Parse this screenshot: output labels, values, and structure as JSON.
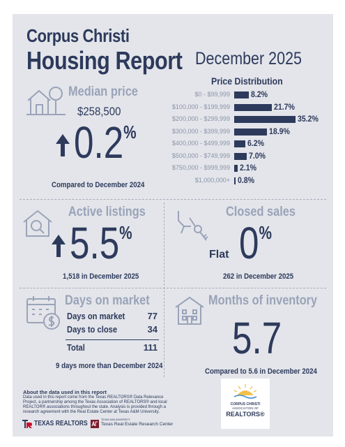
{
  "header": {
    "city": "Corpus Christi",
    "title": "Housing Report",
    "period": "December 2025"
  },
  "price_distribution": {
    "title": "Price Distribution",
    "rows": [
      {
        "label": "$0 - $99,999",
        "value": "8.2%"
      },
      {
        "label": "$100,000 - $199,999",
        "value": "21.7%"
      },
      {
        "label": "$200,000 - $299,999",
        "value": "35.2%"
      },
      {
        "label": "$300,000 - $399,999",
        "value": "18.9%"
      },
      {
        "label": "$400,000 - $499,999",
        "value": "6.2%"
      },
      {
        "label": "$500,000 - $749,999",
        "value": "7.0%"
      },
      {
        "label": "$750,000 - $999,999",
        "value": "2.1%"
      },
      {
        "label": "$1,000,000+",
        "value": "0.8%"
      }
    ]
  },
  "chart_data": {
    "type": "bar",
    "categories": [
      "$0 - $99,999",
      "$100,000 - $199,999",
      "$200,000 - $299,999",
      "$300,000 - $399,999",
      "$400,000 - $499,999",
      "$500,000 - $749,999",
      "$750,000 - $999,999",
      "$1,000,000+"
    ],
    "values": [
      8.2,
      21.7,
      35.2,
      18.9,
      6.2,
      7.0,
      2.1,
      0.8
    ],
    "title": "Price Distribution",
    "orientation": "horizontal",
    "bar_color": "#2d3a5c"
  },
  "median_price": {
    "title": "Median price",
    "value": "$258,500",
    "change": "0.2",
    "pct_sign": "%",
    "direction": "up",
    "note": "Compared to December 2024"
  },
  "active_listings": {
    "title": "Active listings",
    "change": "5.5",
    "pct_sign": "%",
    "direction": "up",
    "note": "1,518 in December 2025"
  },
  "closed_sales": {
    "title": "Closed sales",
    "flat_label": "Flat",
    "change": "0",
    "pct_sign": "%",
    "note": "262 in December 2025"
  },
  "days_on_market": {
    "title": "Days on market",
    "rows": [
      {
        "label": "Days on market",
        "value": "77"
      },
      {
        "label": "Days to close",
        "value": "34"
      }
    ],
    "total_label": "Total",
    "total_value": "111",
    "note": "9 days more than December 2024"
  },
  "months_inventory": {
    "title": "Months of inventory",
    "value": "5.7",
    "note": "Compared to 5.6 in December 2024"
  },
  "footer": {
    "about_title": "About the data used in this report",
    "about_text": "Data used in this report come from the Texas REALTORS® Data Relevance Project, a partnership among the Texas Association of REALTORS® and local REALTOR® associations throughout the state. Analysis is provided through a research agreement with the Real Estate Center at Texas A&M University.",
    "texas_realtors": "TEXAS REALTORS",
    "research_center_small": "TEXAS A&M UNIVERSITY",
    "research_center": "Texas Real Estate Research Center",
    "association_line1": "CORPUS CHRISTI",
    "association_line2": "ASSOCIATION OF",
    "association_line3": "REALTORS®"
  },
  "colors": {
    "navy": "#2d3a5c",
    "muted": "#9aa3b8",
    "background": "#e3e5ea",
    "maroon": "#7a1c2c",
    "red": "#c8102e"
  }
}
